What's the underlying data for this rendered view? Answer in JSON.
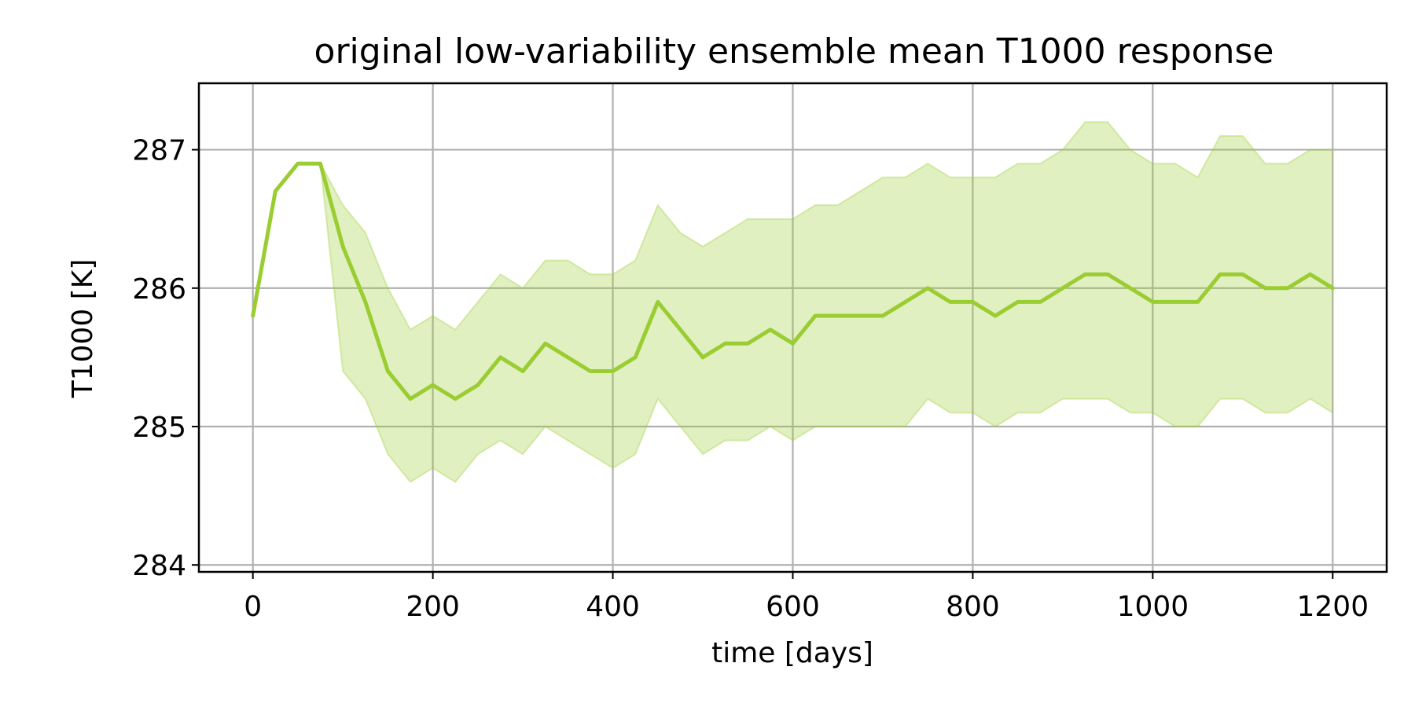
{
  "chart_data": {
    "type": "line",
    "title": "original low-variability ensemble mean T1000 response",
    "xlabel": "time [days]",
    "ylabel": "T1000 [K]",
    "xlim": [
      -60,
      1260
    ],
    "ylim": [
      283.95,
      287.48
    ],
    "xticks": [
      0,
      200,
      400,
      600,
      800,
      1000,
      1200
    ],
    "yticks": [
      284,
      285,
      286,
      287
    ],
    "grid": true,
    "legend": "none",
    "colors": {
      "line": "#9acd32",
      "band": "#9acd32"
    },
    "x": [
      0,
      25,
      50,
      75,
      100,
      125,
      150,
      175,
      200,
      225,
      250,
      275,
      300,
      325,
      350,
      375,
      400,
      425,
      450,
      475,
      500,
      525,
      550,
      575,
      600,
      625,
      650,
      675,
      700,
      725,
      750,
      775,
      800,
      825,
      850,
      875,
      900,
      925,
      950,
      975,
      1000,
      1025,
      1050,
      1075,
      1100,
      1125,
      1150,
      1175,
      1200
    ],
    "series": [
      {
        "values": [
          285.8,
          286.7,
          286.9,
          286.9,
          286.3,
          285.9,
          285.4,
          285.2,
          285.3,
          285.2,
          285.3,
          285.5,
          285.4,
          285.6,
          285.5,
          285.4,
          285.4,
          285.5,
          285.9,
          285.7,
          285.5,
          285.6,
          285.6,
          285.7,
          285.6,
          285.8,
          285.8,
          285.8,
          285.8,
          285.9,
          286.0,
          285.9,
          285.9,
          285.8,
          285.9,
          285.9,
          286.0,
          286.1,
          286.1,
          286.0,
          285.9,
          285.9,
          285.9,
          286.1,
          286.1,
          286.0,
          286.0,
          286.1,
          286.0
        ]
      },
      {
        "values": [
          285.8,
          286.7,
          286.9,
          286.9,
          286.6,
          286.4,
          286.0,
          285.7,
          285.8,
          285.7,
          285.9,
          286.1,
          286.0,
          286.2,
          286.2,
          286.1,
          286.1,
          286.2,
          286.6,
          286.4,
          286.3,
          286.4,
          286.5,
          286.5,
          286.5,
          286.6,
          286.6,
          286.7,
          286.8,
          286.8,
          286.9,
          286.8,
          286.8,
          286.8,
          286.9,
          286.9,
          287.0,
          287.2,
          287.2,
          287.0,
          286.9,
          286.9,
          286.8,
          287.1,
          287.1,
          286.9,
          286.9,
          287.0,
          287.0
        ]
      },
      {
        "values": [
          285.8,
          286.7,
          286.9,
          286.9,
          285.4,
          285.2,
          284.8,
          284.6,
          284.7,
          284.6,
          284.8,
          284.9,
          284.8,
          285.0,
          284.9,
          284.8,
          284.7,
          284.8,
          285.2,
          285.0,
          284.8,
          284.9,
          284.9,
          285.0,
          284.9,
          285.0,
          285.0,
          285.0,
          285.0,
          285.0,
          285.2,
          285.1,
          285.1,
          285.0,
          285.1,
          285.1,
          285.2,
          285.2,
          285.2,
          285.1,
          285.1,
          285.0,
          285.0,
          285.2,
          285.2,
          285.1,
          285.1,
          285.2,
          285.1
        ]
      }
    ]
  }
}
